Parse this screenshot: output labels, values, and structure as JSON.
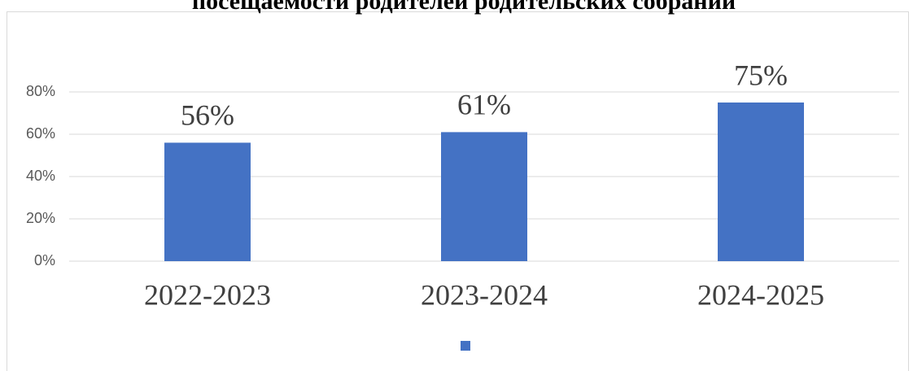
{
  "chart_data": {
    "type": "bar",
    "title": "посещаемости родителей родительских собраний",
    "categories": [
      "2022-2023",
      "2023-2024",
      "2024-2025"
    ],
    "values": [
      56,
      61,
      75
    ],
    "value_labels": [
      "56%",
      "61%",
      "75%"
    ],
    "color": "#4472c4",
    "ylim": [
      0,
      80
    ],
    "yticks": [
      {
        "value": 0,
        "label": "0%"
      },
      {
        "value": 20,
        "label": "20%"
      },
      {
        "value": 40,
        "label": "40%"
      },
      {
        "value": 60,
        "label": "60%"
      },
      {
        "value": 80,
        "label": "80%"
      }
    ],
    "grid": true,
    "legend": "bottom"
  }
}
